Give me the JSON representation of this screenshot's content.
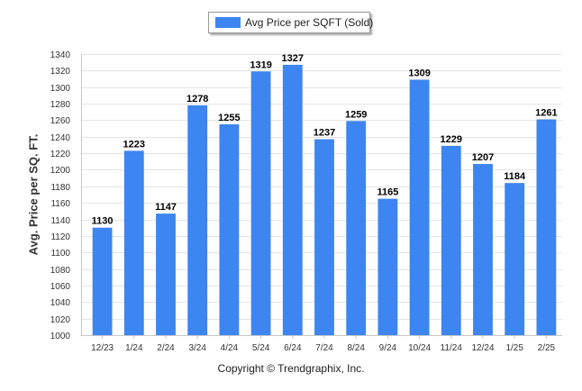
{
  "legend": {
    "label": "Avg Price per SQFT (Sold)"
  },
  "copyright": "Copyright © Trendgraphix, Inc.",
  "colors": {
    "bar": "#3d85f0",
    "grid": "#e4e4e4",
    "axis": "#c8c8c8",
    "text": "#333333"
  },
  "chart_data": {
    "type": "bar",
    "title": "",
    "xlabel": "",
    "ylabel": "Avg. Price per SQ. FT.",
    "legend": "top-center",
    "grid": true,
    "ylim": [
      1000,
      1340
    ],
    "yticks": [
      1000,
      1020,
      1040,
      1060,
      1080,
      1100,
      1120,
      1140,
      1160,
      1180,
      1200,
      1220,
      1240,
      1260,
      1280,
      1300,
      1320,
      1340
    ],
    "categories": [
      "12/23",
      "1/24",
      "2/24",
      "3/24",
      "4/24",
      "5/24",
      "6/24",
      "7/24",
      "8/24",
      "9/24",
      "10/24",
      "11/24",
      "12/24",
      "1/25",
      "2/25"
    ],
    "series": [
      {
        "name": "Avg Price per SQFT (Sold)",
        "values": [
          1130,
          1223,
          1147,
          1278,
          1255,
          1319,
          1327,
          1237,
          1259,
          1165,
          1309,
          1229,
          1207,
          1184,
          1261
        ]
      }
    ]
  }
}
